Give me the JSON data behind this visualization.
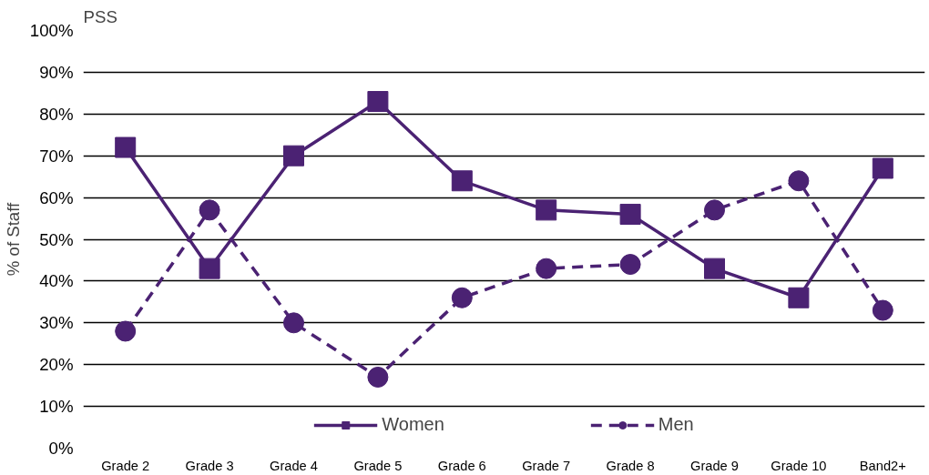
{
  "chart_data": {
    "type": "line",
    "title": "PSS",
    "ylabel": "% of Staff",
    "categories": [
      "Grade 2",
      "Grade 3",
      "Grade 4",
      "Grade 5",
      "Grade 6",
      "Grade 7",
      "Grade 8",
      "Grade 9",
      "Grade 10",
      "Band2+"
    ],
    "series": [
      {
        "name": "Women",
        "color": "#4b2273",
        "marker": "square",
        "line_style": "solid",
        "values": [
          72,
          43,
          70,
          83,
          64,
          57,
          56,
          43,
          36,
          67
        ]
      },
      {
        "name": "Men",
        "color": "#4b2273",
        "marker": "circle",
        "line_style": "dashed",
        "values": [
          28,
          57,
          30,
          17,
          36,
          43,
          44,
          57,
          64,
          33
        ]
      }
    ],
    "ylim": [
      0,
      100
    ],
    "yticks": [
      {
        "value": 0,
        "label": "0%"
      },
      {
        "value": 10,
        "label": "10%"
      },
      {
        "value": 20,
        "label": "20%"
      },
      {
        "value": 30,
        "label": "30%"
      },
      {
        "value": 40,
        "label": "40%"
      },
      {
        "value": 50,
        "label": "50%"
      },
      {
        "value": 60,
        "label": "60%"
      },
      {
        "value": 70,
        "label": "70%"
      },
      {
        "value": 80,
        "label": "80%"
      },
      {
        "value": 90,
        "label": "90%"
      },
      {
        "value": 100,
        "label": "100%"
      }
    ],
    "grid": "y",
    "legend": "bottom"
  }
}
